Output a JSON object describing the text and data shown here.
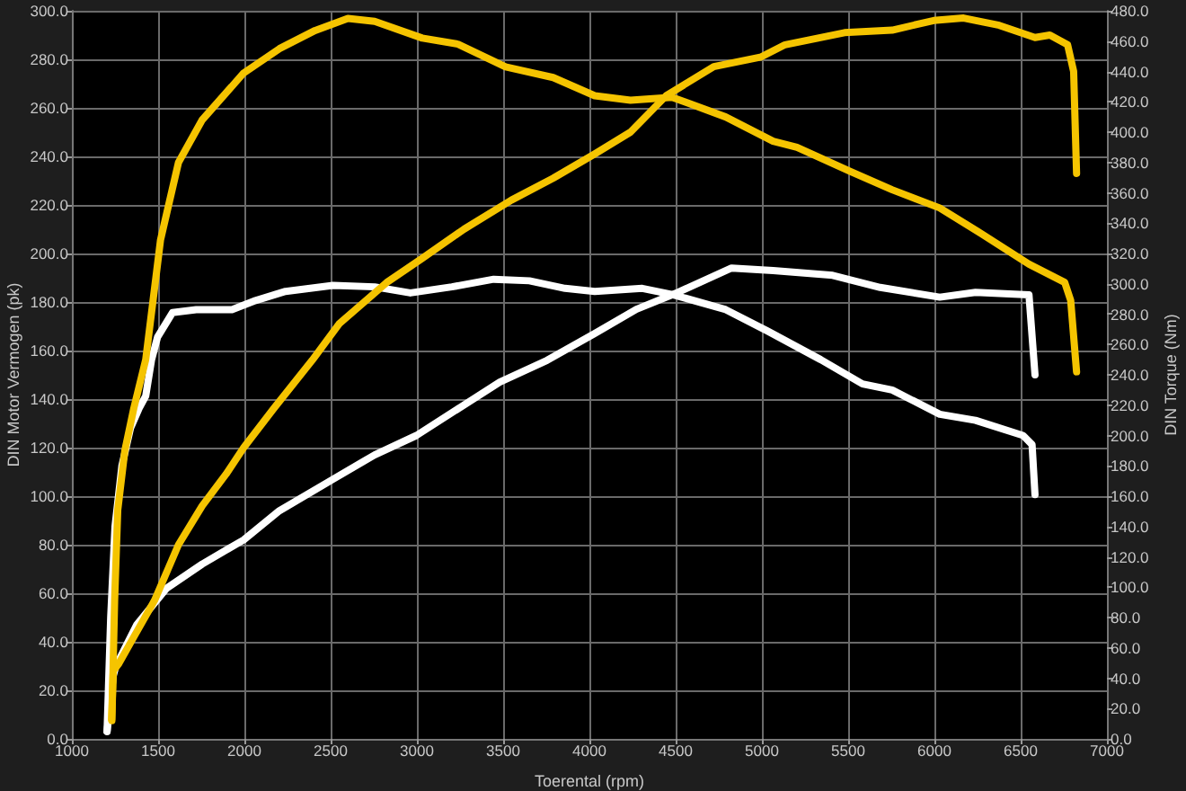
{
  "chart_data": {
    "type": "line",
    "xlabel": "Toerental (rpm)",
    "ylabel": "DIN Motor Vermogen (pk)",
    "y2label": "DIN Torque (Nm)",
    "xlim": [
      1000,
      7000
    ],
    "xticks": [
      1000,
      1500,
      2000,
      2500,
      3000,
      3500,
      4000,
      4500,
      5000,
      5500,
      6000,
      6500,
      7000
    ],
    "ylim": [
      0,
      300
    ],
    "yticks": [
      {
        "value": 0,
        "label": "0.0"
      },
      {
        "value": 20,
        "label": "20.0"
      },
      {
        "value": 40,
        "label": "40.0"
      },
      {
        "value": 60,
        "label": "60.0"
      },
      {
        "value": 80,
        "label": "80.0"
      },
      {
        "value": 100,
        "label": "100.0"
      },
      {
        "value": 120,
        "label": "120.0"
      },
      {
        "value": 140,
        "label": "140.0"
      },
      {
        "value": 160,
        "label": "160.0"
      },
      {
        "value": 180,
        "label": "180.0"
      },
      {
        "value": 200,
        "label": "200.0"
      },
      {
        "value": 220,
        "label": "220.0"
      },
      {
        "value": 240,
        "label": "240.0"
      },
      {
        "value": 260,
        "label": "260.0"
      },
      {
        "value": 280,
        "label": "280.0"
      },
      {
        "value": 300,
        "label": "300.0"
      }
    ],
    "y2lim": [
      0,
      480
    ],
    "y2ticks": [
      {
        "value": 0,
        "label": "0.0"
      },
      {
        "value": 20,
        "label": "20.0"
      },
      {
        "value": 40,
        "label": "40.0"
      },
      {
        "value": 60,
        "label": "60.0"
      },
      {
        "value": 80,
        "label": "80.0"
      },
      {
        "value": 100,
        "label": "100.0"
      },
      {
        "value": 120,
        "label": "120.0"
      },
      {
        "value": 140,
        "label": "140.0"
      },
      {
        "value": 160,
        "label": "160.0"
      },
      {
        "value": 180,
        "label": "180.0"
      },
      {
        "value": 200,
        "label": "200.0"
      },
      {
        "value": 220,
        "label": "220.0"
      },
      {
        "value": 240,
        "label": "240.0"
      },
      {
        "value": 260,
        "label": "260.0"
      },
      {
        "value": 280,
        "label": "280.0"
      },
      {
        "value": 300,
        "label": "300.0"
      },
      {
        "value": 320,
        "label": "320.0"
      },
      {
        "value": 340,
        "label": "340.0"
      },
      {
        "value": 360,
        "label": "360.0"
      },
      {
        "value": 380,
        "label": "380.0"
      },
      {
        "value": 400,
        "label": "400.0"
      },
      {
        "value": 420,
        "label": "420.0"
      },
      {
        "value": 440,
        "label": "440.0"
      },
      {
        "value": 460,
        "label": "460.0"
      },
      {
        "value": 480,
        "label": "480.0"
      }
    ],
    "grid": true,
    "marker": "none",
    "line_style": "solid",
    "series": [
      {
        "color": "#ffffff",
        "axis": "y2",
        "x": [
          1204,
          1225,
          1250,
          1290,
          1340,
          1390,
          1428,
          1462,
          1497,
          1583,
          1721,
          1928,
          2065,
          2238,
          2514,
          2755,
          2962,
          3203,
          3445,
          3652,
          3859,
          4031,
          4307,
          4479,
          4790,
          5031,
          5341,
          5583,
          5755,
          6031,
          6238,
          6514,
          6566,
          6583
        ],
        "values": [
          5,
          80,
          140,
          180,
          205,
          218,
          226,
          250,
          265,
          281,
          283,
          283,
          289,
          295,
          299,
          298,
          294,
          298,
          303,
          302,
          297,
          295,
          297,
          293,
          283,
          269,
          250,
          234,
          230,
          214,
          210,
          200,
          194,
          161
        ]
      },
      {
        "color": "#ffffff",
        "axis": "y",
        "x": [
          1204,
          1240,
          1255,
          1376,
          1548,
          1755,
          1996,
          2203,
          2514,
          2755,
          2997,
          3238,
          3480,
          3755,
          4031,
          4272,
          4514,
          4824,
          5065,
          5410,
          5686,
          6031,
          6238,
          6548,
          6583
        ],
        "values": [
          3,
          26,
          30,
          47,
          62,
          72,
          82,
          94,
          107,
          117,
          125,
          136,
          147,
          156,
          167,
          177,
          184,
          194,
          193,
          191,
          186,
          182,
          184,
          183,
          150
        ]
      },
      {
        "color": "#f5c400",
        "axis": "y2",
        "x": [
          1232,
          1248,
          1266,
          1307,
          1359,
          1428,
          1514,
          1618,
          1755,
          1996,
          2203,
          2410,
          2600,
          2755,
          3031,
          3238,
          3514,
          3790,
          4031,
          4238,
          4479,
          4790,
          5065,
          5203,
          5514,
          5755,
          6031,
          6273,
          6548,
          6755,
          6790,
          6824
        ],
        "values": [
          12,
          92,
          151,
          190,
          218,
          250,
          329,
          380,
          408,
          439,
          455,
          467,
          475,
          473,
          462,
          458,
          443,
          436,
          424,
          421,
          423,
          410,
          394,
          390,
          374,
          362,
          350,
          333,
          313,
          301,
          289,
          242
        ]
      },
      {
        "color": "#f5c400",
        "axis": "y",
        "x": [
          1230,
          1240,
          1272,
          1359,
          1479,
          1618,
          1755,
          1893,
          1996,
          2169,
          2393,
          2549,
          2824,
          3031,
          3273,
          3548,
          3790,
          4031,
          4238,
          4445,
          4721,
          4996,
          5134,
          5479,
          5755,
          5996,
          6169,
          6376,
          6583,
          6669,
          6772,
          6807,
          6824
        ],
        "values": [
          8,
          28,
          31,
          42,
          57,
          80,
          96,
          109,
          120,
          136,
          156,
          171,
          188,
          198,
          210,
          222,
          231,
          241,
          250,
          265,
          277,
          281,
          286,
          291,
          292,
          296,
          297,
          294,
          289,
          290,
          286,
          275,
          233
        ]
      }
    ]
  }
}
